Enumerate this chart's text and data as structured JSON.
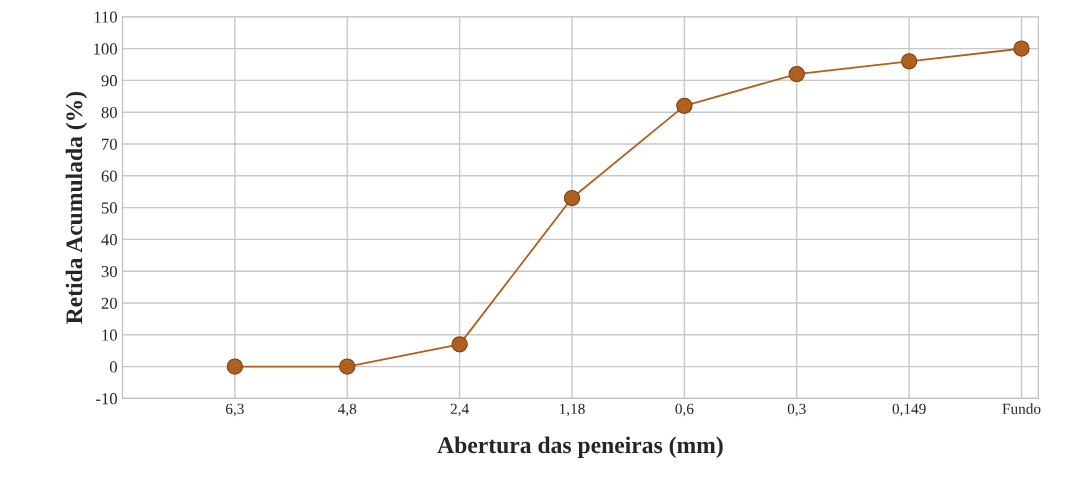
{
  "chart_data": {
    "type": "line",
    "xlabel": "Abertura das peneiras (mm)",
    "ylabel": "Retida Acumulada (%)",
    "categories": [
      null,
      "6,3",
      "4,8",
      "2,4",
      "1,18",
      "0,6",
      "0,3",
      "0,149",
      "Fundo"
    ],
    "series": [
      {
        "color": "#b0601e",
        "values": [
          null,
          0,
          0,
          7,
          53,
          82,
          92,
          96,
          100
        ]
      }
    ],
    "ylim": [
      -10,
      110
    ],
    "yticks": [
      -10,
      0,
      10,
      20,
      30,
      40,
      50,
      60,
      70,
      80,
      90,
      100,
      110
    ],
    "grid": true,
    "marker": "circle",
    "line_style": "solid",
    "legend": false
  }
}
